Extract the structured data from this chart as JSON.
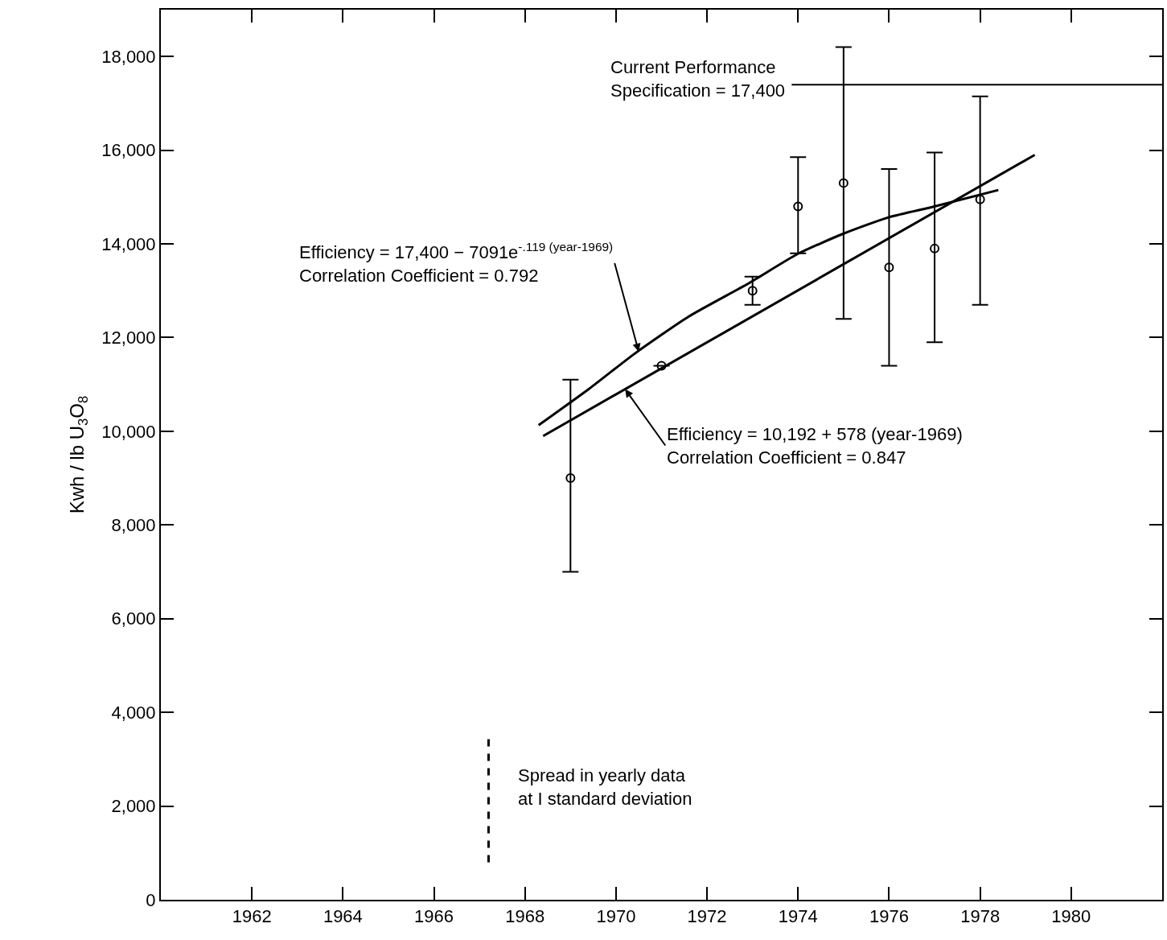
{
  "chart_data": {
    "type": "scatter",
    "ylabel": "Kwh / lb U$_{3}$O$_{8}$",
    "xlim": [
      1960,
      1982
    ],
    "xticks": [
      1962,
      1964,
      1966,
      1968,
      1970,
      1972,
      1974,
      1976,
      1978,
      1980
    ],
    "ylim": [
      0,
      19000
    ],
    "yticks": [
      {
        "value": 0,
        "label": "0"
      },
      {
        "value": 2000,
        "label": "2,000"
      },
      {
        "value": 4000,
        "label": "4,000"
      },
      {
        "value": 6000,
        "label": "6,000"
      },
      {
        "value": 8000,
        "label": "8,000"
      },
      {
        "value": 10000,
        "label": "10,000"
      },
      {
        "value": 12000,
        "label": "12,000"
      },
      {
        "value": 14000,
        "label": "14,000"
      },
      {
        "value": 16000,
        "label": "16,000"
      },
      {
        "value": 18000,
        "label": "18,000"
      }
    ],
    "series": [
      {
        "color": "#000000",
        "marker": "circle",
        "x": [
          1969,
          1971,
          1973,
          1974,
          1975,
          1976,
          1977,
          1978
        ],
        "values": [
          9000,
          11400,
          13000,
          14800,
          15300,
          13500,
          13900,
          14950
        ],
        "errors": [
          [
            7000,
            11100
          ],
          null,
          [
            12700,
            13300
          ],
          [
            13800,
            15850
          ],
          [
            12400,
            18200
          ],
          [
            11400,
            15600
          ],
          [
            11900,
            15950
          ],
          [
            12700,
            17150
          ]
        ]
      },
      {
        "type": "line",
        "color": "#000000",
        "marker": "none",
        "x": [
          1968.3,
          1969.4,
          1970.4,
          1971.6,
          1972.9,
          1974,
          1975,
          1976,
          1977,
          1978.4
        ],
        "values": [
          10130,
          10900,
          11650,
          12450,
          13150,
          13790,
          14220,
          14570,
          14800,
          15150
        ]
      },
      {
        "type": "line",
        "color": "#000000",
        "marker": "none",
        "x": [
          1968.4,
          1979.2
        ],
        "values": [
          9900,
          15900
        ]
      },
      {
        "type": "line",
        "color": "#000000",
        "marker": "none",
        "line_style": "dashed",
        "x": [
          1967.2,
          1967.2
        ],
        "values": [
          800,
          3500
        ]
      }
    ],
    "ref_lines": [
      {
        "axis": "y",
        "value": 17400,
        "label": "Current Performance\nSpecification = 17,400",
        "color": "#000000"
      }
    ],
    "annotations": [
      {
        "text": "Efficiency = 17,400 − 7091e$^{-.119 (year-1969)}$\nCorrelation Coefficient = 0.792",
        "x": 1970.5,
        "y": 11700
      },
      {
        "text": "Efficiency = 10,192 + 578 (year-1969)\nCorrelation Coefficient = 0.847",
        "x": 1970.2,
        "y": 10900
      },
      "Spread in yearly data\nat I standard deviation"
    ]
  }
}
